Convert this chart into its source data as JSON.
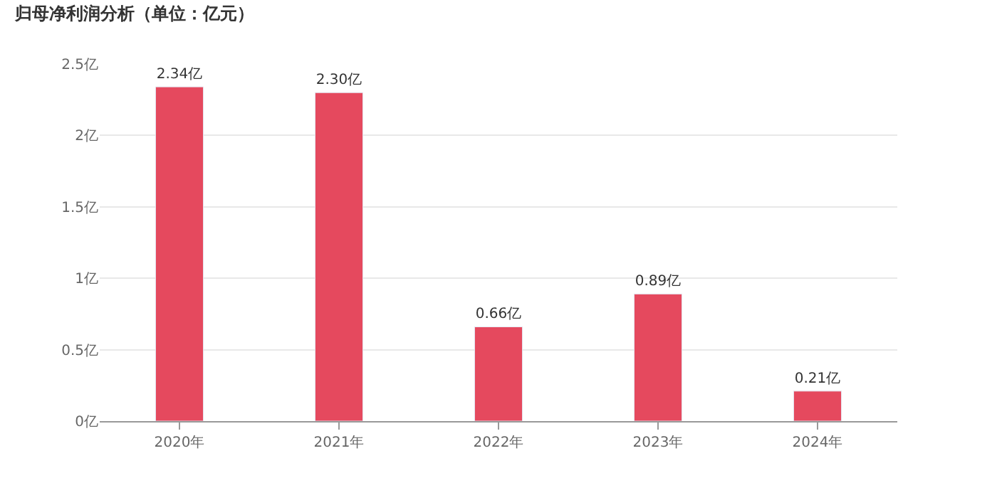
{
  "chart_data": {
    "type": "bar",
    "title": "归母净利润分析（单位：亿元）",
    "categories": [
      "2020年",
      "2021年",
      "2022年",
      "2023年",
      "2024年"
    ],
    "values": [
      2.34,
      2.3,
      0.66,
      0.89,
      0.21
    ],
    "value_labels": [
      "2.34亿",
      "2.30亿",
      "0.66亿",
      "0.89亿",
      "0.21亿"
    ],
    "color": "#e5495e",
    "ylim": [
      0,
      2.5
    ],
    "yticks": [
      {
        "value": 0,
        "label": "0亿"
      },
      {
        "value": 0.5,
        "label": "0.5亿"
      },
      {
        "value": 1,
        "label": "1亿"
      },
      {
        "value": 1.5,
        "label": "1.5亿"
      },
      {
        "value": 2,
        "label": "2亿"
      },
      {
        "value": 2.5,
        "label": "2.5亿"
      }
    ],
    "grid": "y"
  }
}
